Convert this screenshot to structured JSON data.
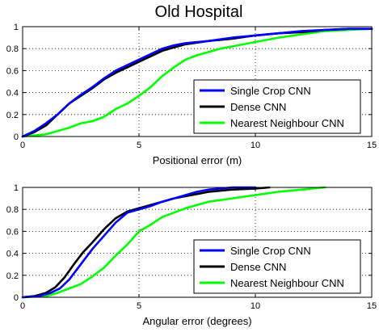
{
  "figure": {
    "title": "Old Hospital"
  },
  "chart_data": [
    {
      "type": "line",
      "title": "Old Hospital",
      "xlabel": "Positional error (m)",
      "ylabel": "",
      "xlim": [
        0,
        15
      ],
      "ylim": [
        0,
        1
      ],
      "xticks": [
        "0",
        "5",
        "10",
        "15"
      ],
      "yticks": [
        "0",
        "0.2",
        "0.4",
        "0.6",
        "0.8",
        "1"
      ],
      "grid": true,
      "legend_position": "bottom-right",
      "series": [
        {
          "name": "Single Crop CNN",
          "color": "#0000ff",
          "points": [
            [
              0,
              0
            ],
            [
              0.5,
              0.05
            ],
            [
              1,
              0.12
            ],
            [
              1.5,
              0.2
            ],
            [
              2,
              0.3
            ],
            [
              2.5,
              0.38
            ],
            [
              3,
              0.45
            ],
            [
              3.5,
              0.53
            ],
            [
              4,
              0.6
            ],
            [
              4.5,
              0.65
            ],
            [
              5,
              0.7
            ],
            [
              5.5,
              0.75
            ],
            [
              6,
              0.8
            ],
            [
              6.5,
              0.83
            ],
            [
              7,
              0.85
            ],
            [
              8,
              0.87
            ],
            [
              9,
              0.9
            ],
            [
              10,
              0.92
            ],
            [
              11,
              0.94
            ],
            [
              12,
              0.96
            ],
            [
              13,
              0.97
            ],
            [
              14,
              0.98
            ],
            [
              15,
              0.98
            ]
          ]
        },
        {
          "name": "Dense CNN",
          "color": "#000000",
          "points": [
            [
              0,
              0
            ],
            [
              0.5,
              0.04
            ],
            [
              1,
              0.1
            ],
            [
              1.5,
              0.2
            ],
            [
              2,
              0.3
            ],
            [
              2.5,
              0.37
            ],
            [
              3,
              0.44
            ],
            [
              3.5,
              0.52
            ],
            [
              4,
              0.58
            ],
            [
              4.5,
              0.63
            ],
            [
              5,
              0.68
            ],
            [
              5.5,
              0.73
            ],
            [
              6,
              0.78
            ],
            [
              6.5,
              0.81
            ],
            [
              7,
              0.84
            ],
            [
              8,
              0.87
            ],
            [
              9,
              0.89
            ],
            [
              10,
              0.92
            ],
            [
              11,
              0.94
            ],
            [
              12,
              0.95
            ],
            [
              13,
              0.97
            ],
            [
              14,
              0.98
            ],
            [
              15,
              0.98
            ]
          ]
        },
        {
          "name": "Nearest Neighbour CNN",
          "color": "#00ff00",
          "points": [
            [
              0,
              0
            ],
            [
              1,
              0.02
            ],
            [
              1.5,
              0.05
            ],
            [
              2,
              0.08
            ],
            [
              2.5,
              0.12
            ],
            [
              3,
              0.14
            ],
            [
              3.5,
              0.18
            ],
            [
              4,
              0.25
            ],
            [
              4.5,
              0.3
            ],
            [
              5,
              0.37
            ],
            [
              5.5,
              0.45
            ],
            [
              6,
              0.55
            ],
            [
              6.5,
              0.63
            ],
            [
              7,
              0.7
            ],
            [
              7.5,
              0.74
            ],
            [
              8,
              0.77
            ],
            [
              8.5,
              0.8
            ],
            [
              9,
              0.82
            ],
            [
              10,
              0.86
            ],
            [
              11,
              0.9
            ],
            [
              12,
              0.93
            ],
            [
              13,
              0.96
            ],
            [
              14,
              0.97
            ],
            [
              15,
              0.98
            ]
          ]
        }
      ]
    },
    {
      "type": "line",
      "title": "",
      "xlabel": "Angular error (degrees)",
      "ylabel": "",
      "xlim": [
        0,
        15
      ],
      "ylim": [
        0,
        1
      ],
      "xticks": [
        "0",
        "5",
        "10",
        "15"
      ],
      "yticks": [
        "0",
        "0.2",
        "0.4",
        "0.6",
        "0.8",
        "1"
      ],
      "grid": true,
      "legend_position": "bottom-right",
      "series": [
        {
          "name": "Single Crop CNN",
          "color": "#0000ff",
          "points": [
            [
              0,
              0
            ],
            [
              0.7,
              0.01
            ],
            [
              1.2,
              0.04
            ],
            [
              1.6,
              0.08
            ],
            [
              2,
              0.16
            ],
            [
              2.5,
              0.3
            ],
            [
              3,
              0.44
            ],
            [
              3.5,
              0.56
            ],
            [
              4,
              0.68
            ],
            [
              4.5,
              0.77
            ],
            [
              5,
              0.8
            ],
            [
              5.5,
              0.83
            ],
            [
              6,
              0.87
            ],
            [
              6.5,
              0.9
            ],
            [
              7,
              0.93
            ],
            [
              7.5,
              0.96
            ],
            [
              8,
              0.98
            ],
            [
              8.5,
              0.99
            ],
            [
              9,
              1.0
            ],
            [
              10,
              1.0
            ]
          ]
        },
        {
          "name": "Dense CNN",
          "color": "#000000",
          "points": [
            [
              0,
              0
            ],
            [
              0.5,
              0.01
            ],
            [
              1,
              0.04
            ],
            [
              1.4,
              0.09
            ],
            [
              1.8,
              0.18
            ],
            [
              2.2,
              0.3
            ],
            [
              2.6,
              0.41
            ],
            [
              3,
              0.5
            ],
            [
              3.5,
              0.62
            ],
            [
              4,
              0.72
            ],
            [
              4.5,
              0.78
            ],
            [
              5,
              0.81
            ],
            [
              5.5,
              0.84
            ],
            [
              6,
              0.87
            ],
            [
              6.5,
              0.9
            ],
            [
              7,
              0.92
            ],
            [
              7.5,
              0.94
            ],
            [
              8,
              0.96
            ],
            [
              9,
              0.98
            ],
            [
              10,
              0.99
            ],
            [
              10.6,
              1.0
            ]
          ]
        },
        {
          "name": "Nearest Neighbour CNN",
          "color": "#00ff00",
          "points": [
            [
              0,
              0
            ],
            [
              1,
              0.01
            ],
            [
              1.5,
              0.04
            ],
            [
              2,
              0.08
            ],
            [
              2.5,
              0.12
            ],
            [
              3,
              0.19
            ],
            [
              3.5,
              0.27
            ],
            [
              4,
              0.38
            ],
            [
              4.5,
              0.48
            ],
            [
              5,
              0.6
            ],
            [
              5.5,
              0.66
            ],
            [
              6,
              0.73
            ],
            [
              6.5,
              0.77
            ],
            [
              7,
              0.81
            ],
            [
              8,
              0.87
            ],
            [
              9,
              0.9
            ],
            [
              10,
              0.93
            ],
            [
              11,
              0.96
            ],
            [
              12,
              0.98
            ],
            [
              13,
              1.0
            ]
          ]
        }
      ]
    }
  ]
}
